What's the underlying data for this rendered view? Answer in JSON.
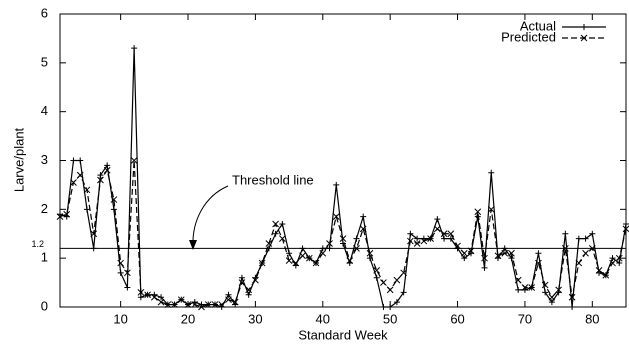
{
  "chart_data": {
    "type": "line",
    "x_label": "Standard Week",
    "y_label": "Larve/plant",
    "threshold": {
      "value": 1.2,
      "label": "Threshold line"
    },
    "x": [
      1,
      2,
      3,
      4,
      5,
      6,
      7,
      8,
      9,
      10,
      11,
      12,
      13,
      14,
      15,
      16,
      17,
      18,
      19,
      20,
      21,
      22,
      23,
      24,
      25,
      26,
      27,
      28,
      29,
      30,
      31,
      32,
      33,
      34,
      35,
      36,
      37,
      38,
      39,
      40,
      41,
      42,
      43,
      44,
      45,
      46,
      47,
      48,
      49,
      50,
      51,
      52,
      53,
      54,
      55,
      56,
      57,
      58,
      59,
      60,
      61,
      62,
      63,
      64,
      65,
      66,
      67,
      68,
      69,
      70,
      71,
      72,
      73,
      74,
      75,
      76,
      77,
      78,
      79,
      80,
      81,
      82,
      83,
      84,
      85
    ],
    "series": [
      {
        "name": "Actual",
        "color": "#000000",
        "dash": false,
        "marker": "plus",
        "values": [
          1.9,
          1.85,
          3.0,
          3.0,
          2.0,
          1.2,
          2.7,
          2.9,
          2.0,
          0.7,
          0.4,
          5.3,
          0.2,
          0.25,
          0.25,
          0.2,
          0.05,
          0.05,
          0.15,
          0.05,
          0.1,
          0.05,
          0.05,
          0.05,
          0.0,
          0.25,
          0.05,
          0.6,
          0.25,
          0.6,
          0.9,
          1.2,
          1.5,
          1.7,
          1.1,
          0.85,
          1.2,
          1.0,
          0.9,
          1.2,
          1.2,
          2.5,
          1.3,
          0.9,
          1.4,
          1.85,
          1.0,
          0.6,
          0.0,
          0.0,
          0.1,
          0.3,
          1.5,
          1.4,
          1.4,
          1.4,
          1.8,
          1.4,
          1.4,
          1.2,
          1.0,
          1.1,
          1.85,
          0.8,
          2.75,
          1.0,
          1.2,
          1.0,
          0.35,
          0.35,
          0.4,
          1.1,
          0.3,
          0.1,
          0.3,
          1.5,
          0.0,
          1.4,
          1.4,
          1.5,
          0.7,
          0.65,
          1.0,
          0.9,
          1.7
        ]
      },
      {
        "name": "Predicted",
        "color": "#000000",
        "dash": true,
        "marker": "cross",
        "values": [
          1.85,
          1.9,
          2.55,
          2.7,
          2.4,
          1.5,
          2.6,
          2.8,
          2.2,
          0.9,
          0.7,
          3.0,
          0.3,
          0.25,
          0.2,
          0.1,
          0.05,
          0.05,
          0.15,
          0.05,
          0.05,
          0.0,
          0.05,
          0.05,
          0.05,
          0.15,
          0.1,
          0.5,
          0.35,
          0.55,
          0.9,
          1.3,
          1.7,
          1.4,
          0.95,
          0.9,
          1.05,
          1.0,
          0.9,
          1.1,
          1.3,
          1.85,
          1.4,
          0.95,
          1.2,
          1.6,
          1.1,
          0.75,
          0.5,
          0.35,
          0.55,
          0.7,
          1.35,
          1.3,
          1.35,
          1.4,
          1.6,
          1.5,
          1.5,
          1.25,
          1.1,
          1.15,
          1.95,
          1.0,
          2.0,
          1.05,
          1.1,
          1.1,
          0.55,
          0.4,
          0.4,
          0.9,
          0.45,
          0.2,
          0.35,
          1.2,
          0.2,
          0.9,
          1.1,
          1.2,
          0.75,
          0.65,
          0.9,
          1.0,
          1.6
        ]
      }
    ],
    "xlim": [
      1,
      85
    ],
    "ylim": [
      0,
      6
    ],
    "xticks": [
      10,
      20,
      30,
      40,
      50,
      60,
      70,
      80
    ],
    "yticks": [
      0,
      1,
      2,
      3,
      4,
      5,
      6
    ],
    "legend": "top-right"
  }
}
